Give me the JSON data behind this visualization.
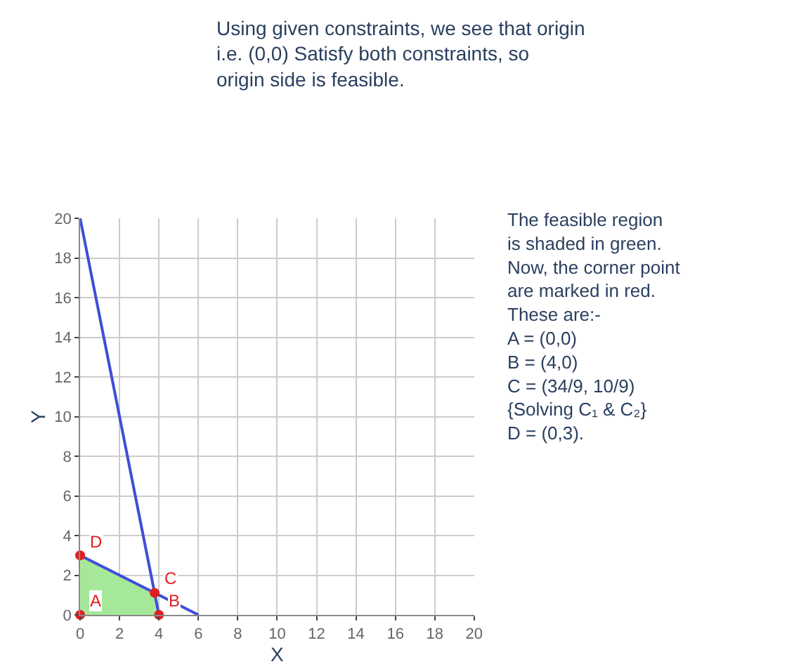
{
  "chart_data": {
    "type": "line",
    "xlabel": "X",
    "ylabel": "Y",
    "xlim": [
      0,
      20
    ],
    "ylim": [
      0,
      20
    ],
    "xticks": [
      0,
      2,
      4,
      6,
      8,
      10,
      12,
      14,
      16,
      18,
      20
    ],
    "yticks": [
      0,
      2,
      4,
      6,
      8,
      10,
      12,
      14,
      16,
      18,
      20
    ],
    "grid": true,
    "series": [
      {
        "type": "area",
        "color": "#a6e89a",
        "x": [
          0,
          4,
          3.78,
          0
        ],
        "values": [
          0,
          0,
          1.11,
          3
        ]
      },
      {
        "color": "#3f4fd6",
        "x": [
          0,
          4
        ],
        "values": [
          20,
          0
        ]
      },
      {
        "color": "#3f4fd6",
        "x": [
          0,
          6
        ],
        "values": [
          3,
          0
        ]
      },
      {
        "type": "scatter",
        "color": "#e02020",
        "marker": "circle",
        "x": [
          0,
          4,
          3.78,
          0
        ],
        "values": [
          0,
          0,
          1.11,
          3
        ]
      }
    ],
    "annotations": [
      "Using given constraints, we see that origin\ni.e. (0,0) Satisfy both constraints, so\norigin side is feasible.",
      "The feasible region\nis shaded in green.\nNow, the corner point\nare marked in red.\nThese are:-\nA = (0,0)\nB = (4,0)\nC = (34/9, 10/9)\n{Solving C₁ & C₂}\nD = (0,3).",
      {
        "text": "A",
        "x": 0,
        "y": 0
      },
      {
        "text": "B",
        "x": 4,
        "y": 0
      },
      {
        "text": "C",
        "x": 3.78,
        "y": 1.11
      },
      {
        "text": "D",
        "x": 0,
        "y": 3
      }
    ]
  }
}
